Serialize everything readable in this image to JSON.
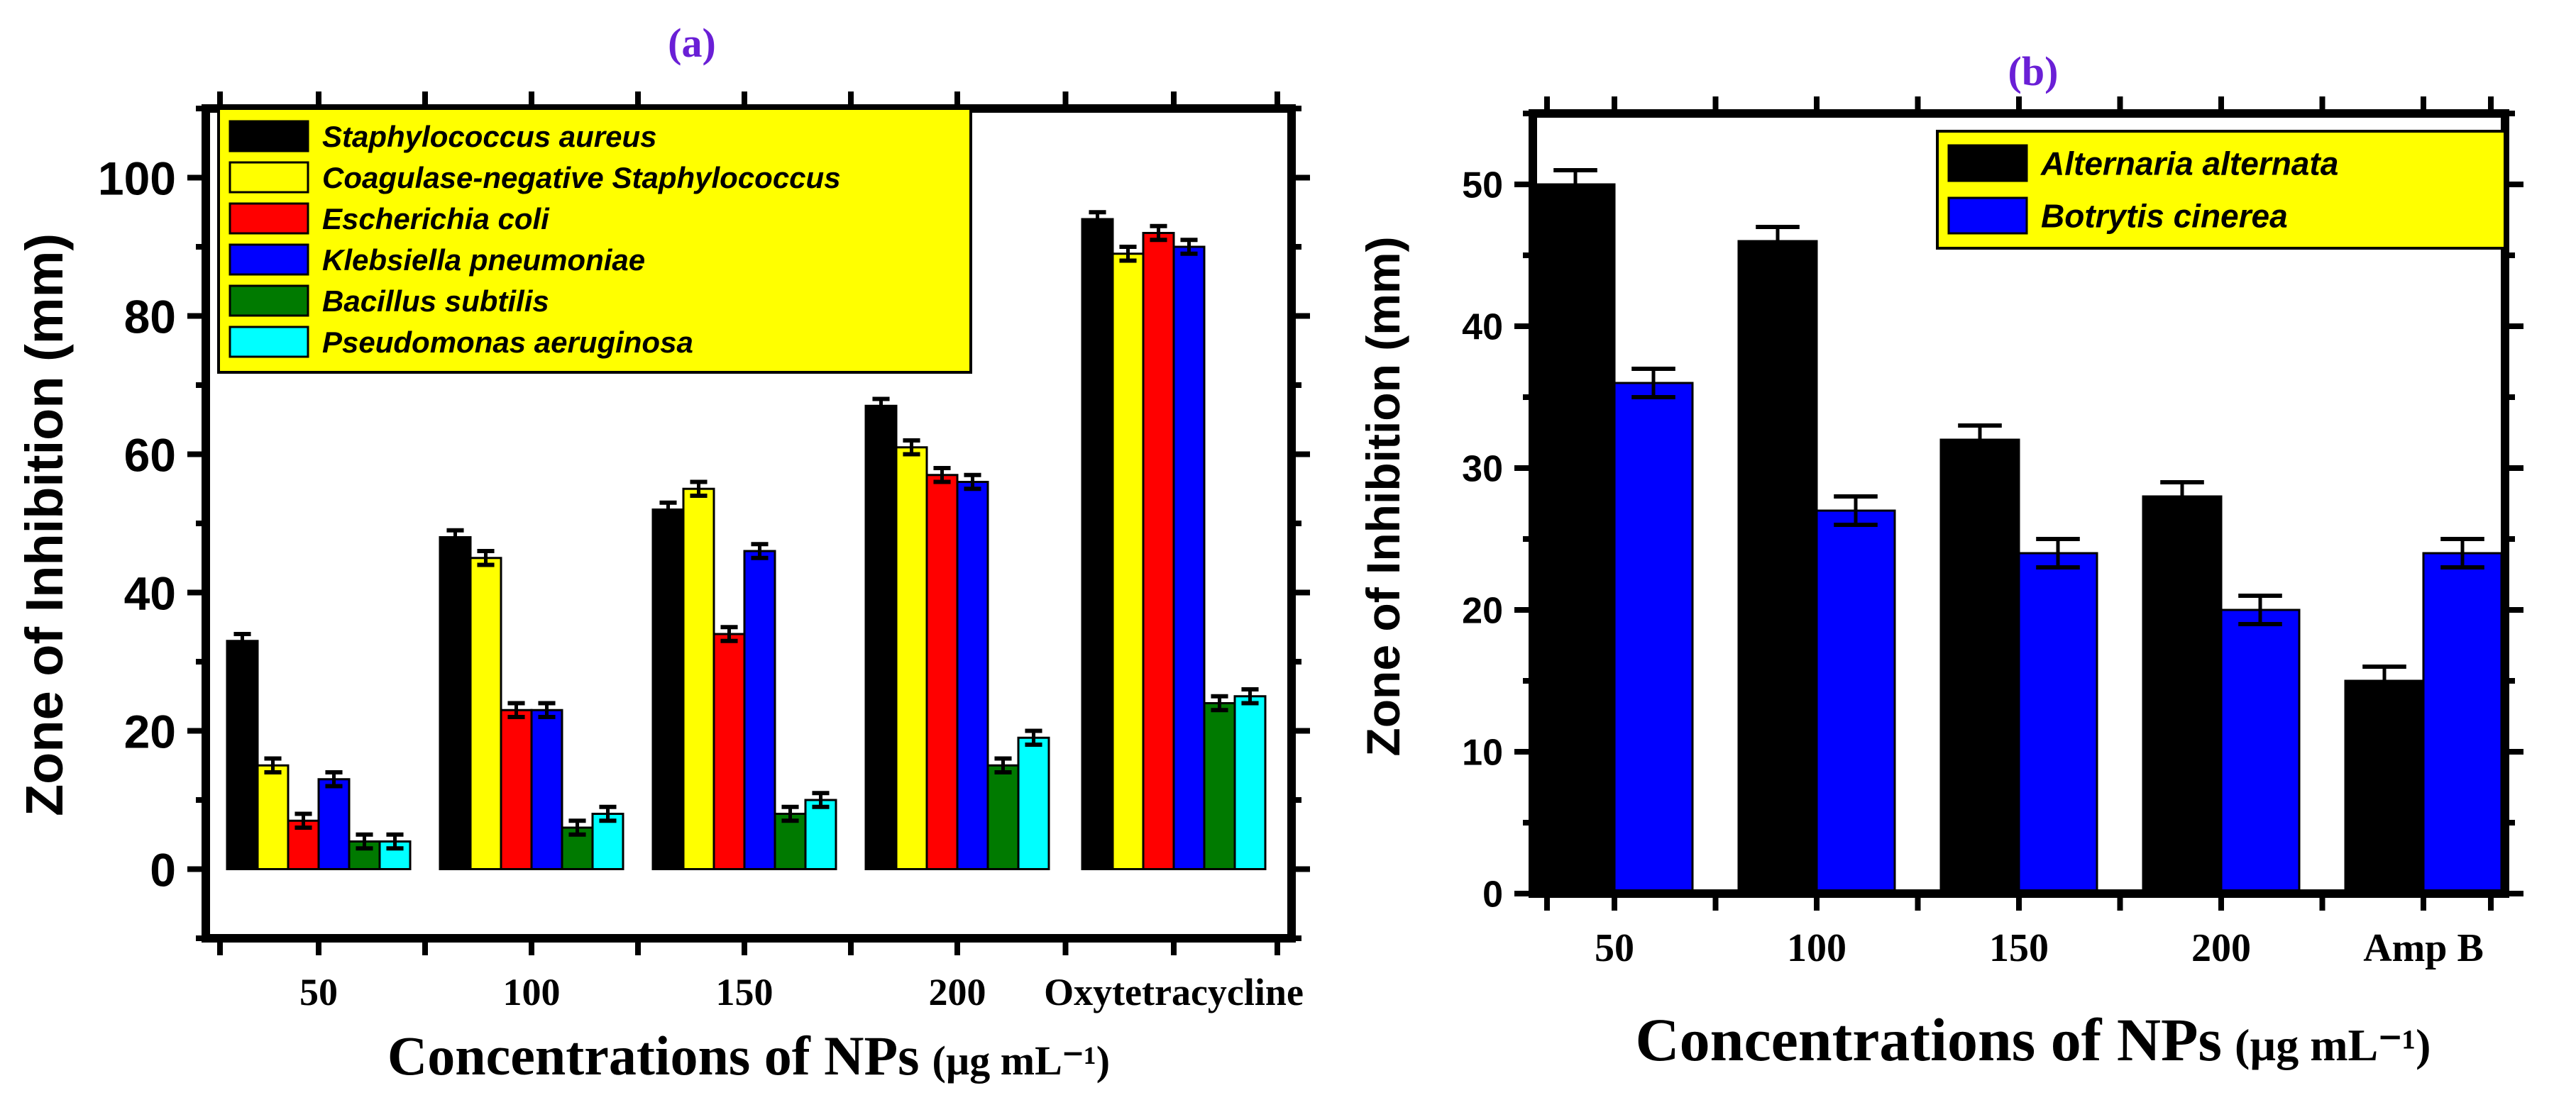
{
  "chart_data": [
    {
      "panel_label": "(a)",
      "type": "bar",
      "categories": [
        "50",
        "100",
        "150",
        "200",
        "Oxytetracycline"
      ],
      "ylabel": "Zone of Inhibition (mm)",
      "xlabel_main": "Concentrations of NPs",
      "xlabel_unit": "(µg mL⁻¹)",
      "ylim": [
        -10,
        110
      ],
      "yticks": [
        0,
        20,
        40,
        60,
        80,
        100
      ],
      "legend_position": "top-left",
      "series": [
        {
          "name": "Staphylococcus aureus",
          "color": "#000000",
          "values": [
            33,
            48,
            52,
            67,
            94
          ],
          "errors": [
            1,
            1,
            1,
            1,
            1
          ]
        },
        {
          "name": "Coagulase-negative Staphylococcus",
          "color": "#ffff00",
          "values": [
            15,
            45,
            55,
            61,
            89
          ],
          "errors": [
            1,
            1,
            1,
            1,
            1
          ]
        },
        {
          "name": "Escherichia coli",
          "color": "#ff0000",
          "values": [
            7,
            23,
            34,
            57,
            92
          ],
          "errors": [
            1,
            1,
            1,
            1,
            1
          ]
        },
        {
          "name": "Klebsiella pneumoniae",
          "color": "#0000ff",
          "values": [
            13,
            23,
            46,
            56,
            90
          ],
          "errors": [
            1,
            1,
            1,
            1,
            1
          ]
        },
        {
          "name": "Bacillus subtilis",
          "color": "#007a00",
          "values": [
            4,
            6,
            8,
            15,
            24
          ],
          "errors": [
            1,
            1,
            1,
            1,
            1
          ]
        },
        {
          "name": "Pseudomonas aeruginosa",
          "color": "#00ffff",
          "values": [
            4,
            8,
            10,
            19,
            25
          ],
          "errors": [
            1,
            1,
            1,
            1,
            1
          ]
        }
      ]
    },
    {
      "panel_label": "(b)",
      "type": "bar",
      "categories": [
        "50",
        "100",
        "150",
        "200",
        "Amp B"
      ],
      "ylabel": "Zone of Inhibition (mm)",
      "xlabel_main": "Concentrations of NPs",
      "xlabel_unit": "(µg mL⁻¹)",
      "ylim": [
        0,
        55
      ],
      "yticks": [
        0,
        10,
        20,
        30,
        40,
        50
      ],
      "legend_position": "top-right",
      "series": [
        {
          "name": "Alternaria alternata",
          "color": "#000000",
          "values": [
            50,
            46,
            32,
            28,
            15
          ],
          "errors": [
            1,
            1,
            1,
            1,
            1
          ]
        },
        {
          "name": "Botrytis cinerea",
          "color": "#0000ff",
          "values": [
            36,
            27,
            24,
            20,
            24
          ],
          "errors": [
            1,
            1,
            1,
            1,
            1
          ]
        }
      ]
    }
  ]
}
